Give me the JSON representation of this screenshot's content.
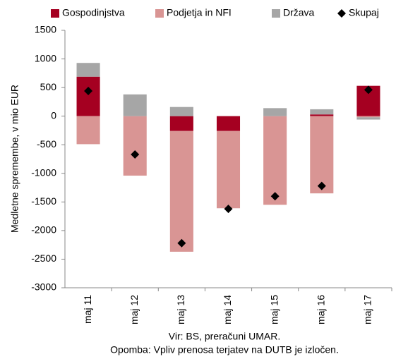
{
  "chart_data": {
    "type": "bar",
    "stacked": true,
    "y_label": "Medletne spremembe, v mio EUR",
    "source": "Vir: BS, preračuni UMAR.",
    "note": "Opomba: Vpliv prenosa terjatev na DUTB je izločen.",
    "categories": [
      "maj 11",
      "maj 12",
      "maj 13",
      "maj 14",
      "maj 15",
      "maj 16",
      "maj 17"
    ],
    "series": [
      {
        "name": "Gospodinjstva",
        "color": "#a50021",
        "values": [
          690,
          0,
          -260,
          -260,
          0,
          30,
          530
        ]
      },
      {
        "name": "Podjetja in NFI",
        "color": "#d99594",
        "values": [
          -490,
          -1040,
          -2110,
          -1350,
          -1550,
          -1350,
          -20
        ]
      },
      {
        "name": "Država",
        "color": "#a6a6a6",
        "values": [
          240,
          380,
          160,
          0,
          140,
          90,
          -40
        ]
      },
      {
        "name": "Skupaj",
        "type": "scatter",
        "marker": "diamond",
        "color": "#000000",
        "values": [
          440,
          -670,
          -2220,
          -1620,
          -1400,
          -1220,
          460
        ]
      }
    ],
    "ylim": [
      -3000,
      1500
    ],
    "yticks": [
      -3000,
      -2500,
      -2000,
      -1500,
      -1000,
      -500,
      0,
      500,
      1000,
      1500
    ],
    "grid": false,
    "legend": "top"
  }
}
